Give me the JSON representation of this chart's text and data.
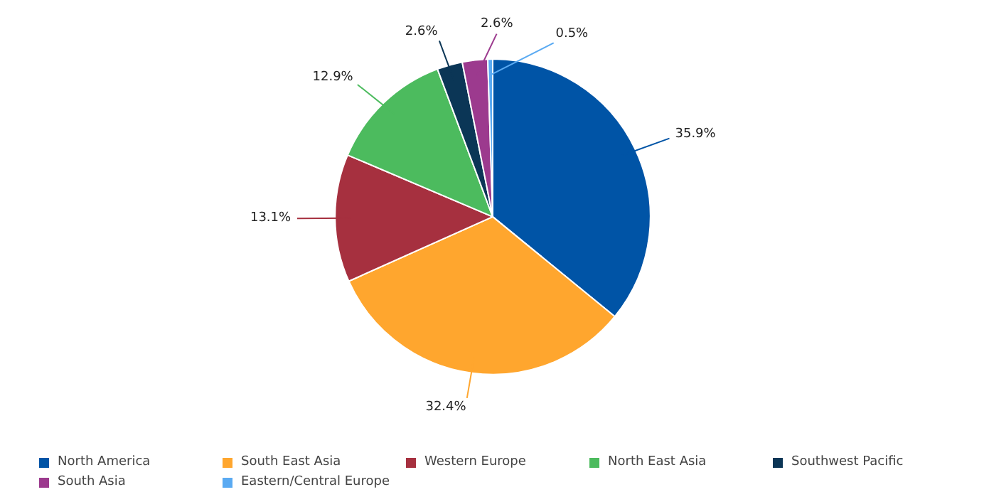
{
  "chart_data": {
    "type": "pie",
    "categories": [
      "North America",
      "South East Asia",
      "Western Europe",
      "North East Asia",
      "Southwest Pacific",
      "South Asia",
      "Eastern/Central Europe"
    ],
    "values": [
      35.9,
      32.4,
      13.1,
      12.9,
      2.6,
      2.6,
      0.5
    ],
    "colors": [
      "#0054a6",
      "#ffa62e",
      "#a6303f",
      "#4cbb5e",
      "#0b3656",
      "#9c3a8e",
      "#5aaaf2"
    ],
    "value_labels": [
      "35.9%",
      "32.4%",
      "13.1%",
      "12.9%",
      "2.6%",
      "2.6%",
      "0.5%"
    ],
    "legend": "bottom"
  }
}
